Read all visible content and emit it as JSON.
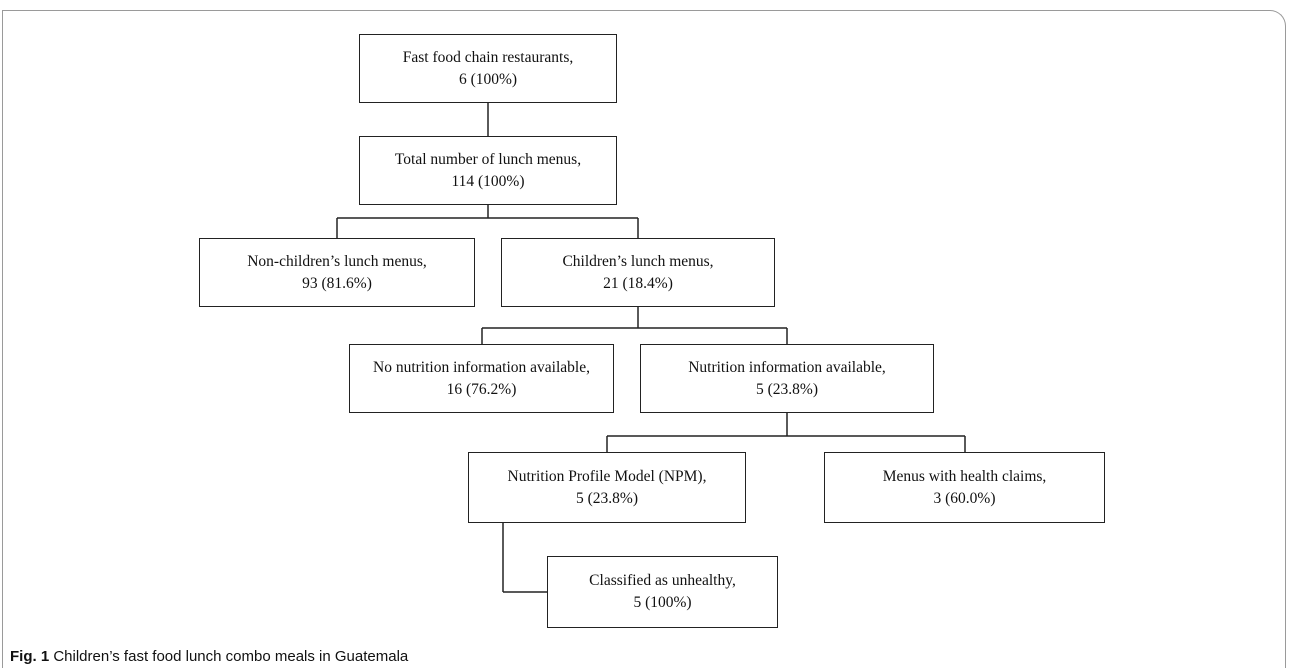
{
  "nodes": {
    "fast_food": {
      "line1": "Fast food chain restaurants,",
      "line2": "6 (100%)"
    },
    "total_lunch": {
      "line1": "Total number of lunch menus,",
      "line2": "114 (100%)"
    },
    "non_children": {
      "line1": "Non-children’s lunch menus,",
      "line2": "93 (81.6%)"
    },
    "children": {
      "line1": "Children’s lunch menus,",
      "line2": "21 (18.4%)"
    },
    "no_nutrition": {
      "line1": "No nutrition information available,",
      "line2": "16 (76.2%)"
    },
    "nutrition": {
      "line1": "Nutrition information available,",
      "line2": "5 (23.8%)"
    },
    "npm": {
      "line1": "Nutrition Profile Model (NPM),",
      "line2": "5 (23.8%)"
    },
    "health_claims": {
      "line1": "Menus with health claims,",
      "line2": "3 (60.0%)"
    },
    "unhealthy": {
      "line1": "Classified as unhealthy,",
      "line2": "5 (100%)"
    }
  },
  "caption": {
    "label": "Fig. 1",
    "text": " Children’s fast food lunch combo meals in Guatemala"
  }
}
